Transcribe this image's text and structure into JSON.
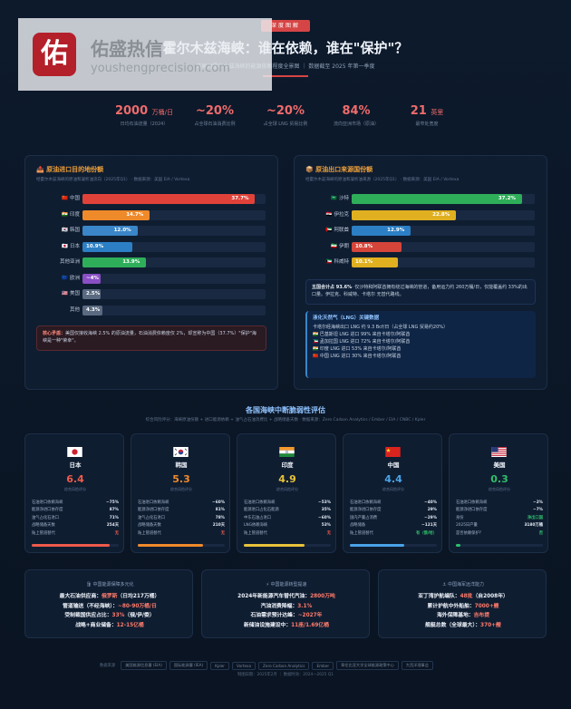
{
  "watermark": {
    "logo_char": "佑",
    "name": "佑盛热信",
    "url": "youshengprecision.com"
  },
  "header": {
    "tag": "深度图解",
    "title": "霍尔木兹海峡：谁在依赖，谁在\"保护\"？",
    "subtitle": "各国对霍尔木兹海峡的能源依赖程度全景图 ｜ 数据截至 2025 年第一季度"
  },
  "kpis": [
    {
      "value": "2000",
      "unit": "万桶/日",
      "label": "日均石油流量（2024）"
    },
    {
      "value": "~20%",
      "unit": "",
      "label": "占全球石油消费比例"
    },
    {
      "value": "~20%",
      "unit": "",
      "label": "占全球 LNG 贸易比例"
    },
    {
      "value": "84%",
      "unit": "",
      "label": "流向亚洲市场（原油）"
    },
    {
      "value": "21",
      "unit": "英里",
      "label": "最窄处宽度"
    }
  ],
  "left_panel": {
    "title": "📤 原油进口目的地份额",
    "subtitle": "经霍尔木兹海峡的原油和凝析油流向（2025年Q1） · 数据来源：美国 EIA / Vortexa",
    "note_label": "核心矛盾：",
    "note_text": "美国仅接收海峡 2.5% 的原油流量，石油消费依赖度仅 2%，却宣称为中国（37.7%）\"保护\"海峡是一种\"荣幸\"。"
  },
  "right_panel": {
    "title": "📦 原油出口来源国份额",
    "subtitle": "经霍尔木兹海峡的原油和凝析油来源（2025年Q1） · 数据来源：美国 EIA / Vortexa",
    "note_head": "五国合计占 93.6%",
    "note_text": "· 仅沙特和阿联酋拥有绕过海峡的管道，备用运力约 260万桶/日，仅能覆盖约 33%的出口量。伊拉克、科威特、卡塔尔 无替代路线。",
    "lng_title": "液化天然气（LNG）关键数据",
    "lng_lines": [
      "卡塔尔经海峡出口 LNG 约 9.3 Bcf/日（占全球 LNG 贸易约20%）",
      "🇮🇳 巴基斯坦 LNG 进口 99% 来自卡塔尔/阿联酋",
      "🇰🇼 孟加拉国 LNG 进口 72% 来自卡塔尔/阿联酋",
      "🇮🇳 印度 LNG 进口 53% 来自卡塔尔/阿联酋",
      "🇨🇳 中国 LNG 进口 30% 来自卡塔尔/阿联酋"
    ]
  },
  "chart_data": [
    {
      "type": "bar",
      "title": "原油进口目的地份额",
      "categories": [
        "中国",
        "印度",
        "韩国",
        "日本",
        "其他亚洲",
        "欧洲",
        "美国",
        "其他"
      ],
      "values": [
        37.7,
        14.7,
        12.0,
        10.9,
        13.9,
        4,
        2.5,
        4.3
      ],
      "value_labels": [
        "37.7%",
        "14.7%",
        "12.0%",
        "10.9%",
        "13.9%",
        "~4%",
        "2.5%",
        "4.3%"
      ],
      "flags": [
        "🇨🇳",
        "🇮🇳",
        "🇰🇷",
        "🇯🇵",
        "",
        "🇪🇺",
        "🇺🇸",
        ""
      ],
      "colors": [
        "#e0423a",
        "#ef8a2a",
        "#3a86c8",
        "#2c7fc4",
        "#2fae5a",
        "#8a4fc4",
        "#5a6a80",
        "#5a6a80"
      ],
      "xlim": [
        0,
        40
      ]
    },
    {
      "type": "bar",
      "title": "原油出口来源国份额",
      "categories": [
        "沙特",
        "伊拉克",
        "阿联酋",
        "伊朗",
        "科威特"
      ],
      "values": [
        37.2,
        22.8,
        12.9,
        10.8,
        10.1
      ],
      "value_labels": [
        "37.2%",
        "22.8%",
        "12.9%",
        "10.8%",
        "10.1%"
      ],
      "flags": [
        "🇸🇦",
        "🇮🇶",
        "🇦🇪",
        "🇮🇷",
        "🇰🇼"
      ],
      "colors": [
        "#2fae5a",
        "#e0b020",
        "#2c7fc4",
        "#d6453a",
        "#e0b020"
      ],
      "xlim": [
        0,
        40
      ]
    }
  ],
  "vulnerability": {
    "title": "各国海峡中断脆弱性评估",
    "subtitle": "综合风险评分：海峡原油份额 + 进口能源依赖 + 油气占石油消费比 + 战略储备天数 · 数据来源：Zero Carbon Analytics / Ember / EIA / CNBC / Kpler",
    "score_caption": "综合风险评分",
    "countries": [
      {
        "name": "日本",
        "flag": "jp",
        "score": "6.4",
        "color": "#ef5a4a",
        "risk": 0.9,
        "rows": [
          [
            "石油进口依赖海峡",
            "~75%"
          ],
          [
            "能源净进口依存度",
            "87%"
          ],
          [
            "油气占化石进口",
            "71%"
          ],
          [
            "战略储备天数",
            "254天"
          ],
          [
            "陆上管道替代",
            "无"
          ]
        ]
      },
      {
        "name": "韩国",
        "flag": "kr",
        "score": "5.3",
        "color": "#ef8a2a",
        "risk": 0.75,
        "rows": [
          [
            "石油进口依赖海峡",
            "~60%"
          ],
          [
            "能源净进口依存度",
            "81%"
          ],
          [
            "油气占化石进口",
            "78%"
          ],
          [
            "战略储备天数",
            "210天"
          ],
          [
            "陆上管道替代",
            "无"
          ]
        ]
      },
      {
        "name": "印度",
        "flag": "in",
        "score": "4.9",
        "color": "#e8c23a",
        "risk": 0.7,
        "rows": [
          [
            "石油进口依赖海峡",
            "~53%"
          ],
          [
            "能源进口占化石能源",
            "35%"
          ],
          [
            "中东石油占进口",
            "~60%"
          ],
          [
            "LNG依赖海峡",
            "53%"
          ],
          [
            "陆上管道替代",
            "无"
          ]
        ]
      },
      {
        "name": "中国",
        "flag": "cn",
        "score": "4.4",
        "color": "#4aa3e8",
        "risk": 0.62,
        "rows": [
          [
            "石油进口依赖海峡",
            "~40%"
          ],
          [
            "能源净进口依存度",
            "29%"
          ],
          [
            "国内产量占消费",
            "~29%"
          ],
          [
            "战略储备",
            "~121天"
          ],
          [
            "陆上管道替代",
            "有（俄/哈）"
          ]
        ]
      },
      {
        "name": "美国",
        "flag": "us",
        "score": "0.3",
        "color": "#2fbe6a",
        "risk": 0.05,
        "rows": [
          [
            "石油进口依赖海峡",
            "~2%"
          ],
          [
            "能源净进口依存度",
            "~7%"
          ],
          [
            "身份",
            "净出口国"
          ],
          [
            "2025日产量",
            "3180万桶"
          ],
          [
            "是否依赖保护？",
            "否"
          ]
        ]
      }
    ]
  },
  "bottom_cards": [
    {
      "title": "🛢 中国能源保障多元化",
      "lines": [
        [
          "最大石油供应商：",
          "俄罗斯",
          "（日均217万桶）"
        ],
        [
          "管道输送（不经海峡）：",
          "~80-90万桶/日",
          ""
        ],
        [
          "受制裁国供应占比：",
          "33%",
          "（俄/伊/委）"
        ],
        [
          "战略+商业储备：",
          "12-15亿桶",
          ""
        ]
      ]
    },
    {
      "title": "⚡ 中国能源转型提速",
      "lines": [
        [
          "2024年新能源汽车替代汽油：",
          "2800万吨",
          ""
        ],
        [
          "汽油消费降幅：",
          "3.1%",
          ""
        ],
        [
          "石油需求预计达峰：",
          "~2027年",
          ""
        ],
        [
          "新储油设施建设中：",
          "11座/1.69亿桶",
          ""
        ]
      ]
    },
    {
      "title": "⚓ 中国海军远洋能力",
      "lines": [
        [
          "亚丁湾护航编队：",
          "48批",
          "（自2008年）"
        ],
        [
          "累计护航中外船舶：",
          "7000+艘",
          ""
        ],
        [
          "海外保障基地：",
          "吉布提",
          ""
        ],
        [
          "舰艇总数（全球最大）：",
          "370+艘",
          ""
        ]
      ]
    }
  ],
  "sources": {
    "label": "数据来源",
    "items": [
      "美国能源信息署 (EIA)",
      "国际能源署 (IEA)",
      "Kpler",
      "Vortexa",
      "Zero Carbon Analytics",
      "Ember",
      "哥伦比亚大学全球能源政策中心",
      "大西洋理事会"
    ]
  },
  "footer": "制图日期：2025年2月 ｜ 数据时效：2024—2025 Q1"
}
